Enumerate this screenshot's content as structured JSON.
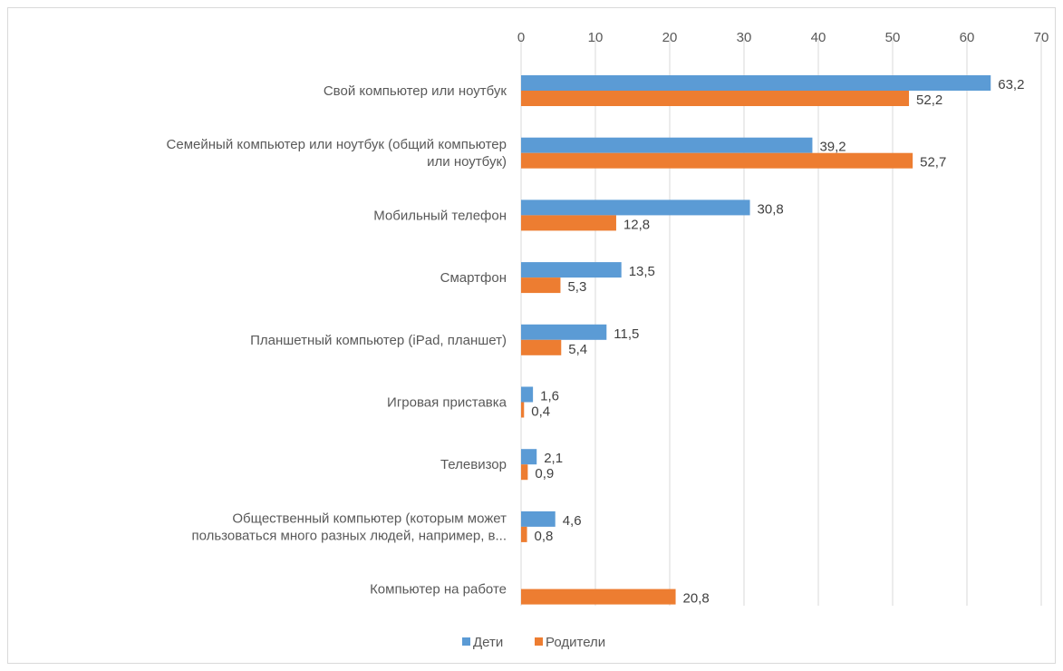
{
  "chart_data": {
    "type": "bar",
    "orientation": "horizontal",
    "categories": [
      [
        "Свой компьютер или ноутбук"
      ],
      [
        "Семейный компьютер или ноутбук (общий компьютер",
        "или ноутбук)"
      ],
      [
        "Мобильный телефон"
      ],
      [
        "Смартфон"
      ],
      [
        "Планшетный компьютер (iPad, планшет)"
      ],
      [
        "Игровая приставка"
      ],
      [
        "Телевизор"
      ],
      [
        "Общественный компьютер (которым может",
        "пользоваться много разных людей, например, в..."
      ],
      [
        "Компьютер на работе"
      ]
    ],
    "series": [
      {
        "name": "Дети",
        "color": "#5b9bd5",
        "values": [
          63.2,
          39.2,
          30.8,
          13.5,
          11.5,
          1.6,
          2.1,
          4.6,
          null
        ],
        "labels": [
          "63,2",
          "39,2",
          "30,8",
          "13,5",
          "11,5",
          "1,6",
          "2,1",
          "4,6",
          ""
        ]
      },
      {
        "name": "Родители",
        "color": "#ed7d31",
        "values": [
          52.2,
          52.7,
          12.8,
          5.3,
          5.4,
          0.4,
          0.9,
          0.8,
          20.8
        ],
        "labels": [
          "52,2",
          "52,7",
          "12,8",
          "5,3",
          "5,4",
          "0,4",
          "0,9",
          "0,8",
          "20,8"
        ]
      }
    ],
    "x_axis": {
      "min": 0,
      "max": 70,
      "ticks": [
        0,
        10,
        20,
        30,
        40,
        50,
        60,
        70
      ],
      "position": "top"
    },
    "grid": true,
    "legend_position": "bottom"
  }
}
